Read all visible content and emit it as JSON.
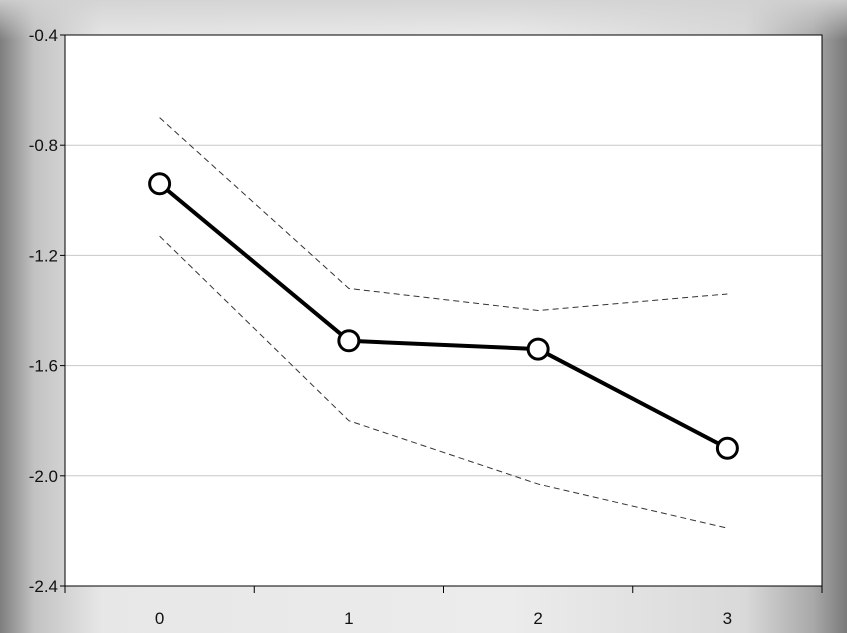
{
  "chart_data": {
    "type": "line",
    "title": "",
    "xlabel": "",
    "ylabel": "",
    "x": [
      0,
      1,
      2,
      3
    ],
    "xticks": [
      "0",
      "1",
      "2",
      "3"
    ],
    "yticks": [
      "-0.4",
      "-0.8",
      "-1.2",
      "-1.6",
      "-2.0",
      "-2.4"
    ],
    "ytick_values": [
      -0.4,
      -0.8,
      -1.2,
      -1.6,
      -2.0,
      -2.4
    ],
    "xlim": [
      -0.5,
      3.5
    ],
    "ylim": [
      -2.4,
      -0.4
    ],
    "grid": "horizontal",
    "legend": "none",
    "series": [
      {
        "role": "estimate",
        "values": [
          -0.94,
          -1.51,
          -1.54,
          -1.9
        ],
        "style": "solid",
        "markers": "open-circle",
        "color": "#000000"
      },
      {
        "role": "upper-band",
        "values": [
          -0.7,
          -1.32,
          -1.4,
          -1.34
        ],
        "style": "dashed",
        "color": "#333333"
      },
      {
        "role": "lower-band",
        "values": [
          -1.13,
          -1.8,
          -2.03,
          -2.19
        ],
        "style": "dashed",
        "color": "#333333"
      }
    ]
  }
}
